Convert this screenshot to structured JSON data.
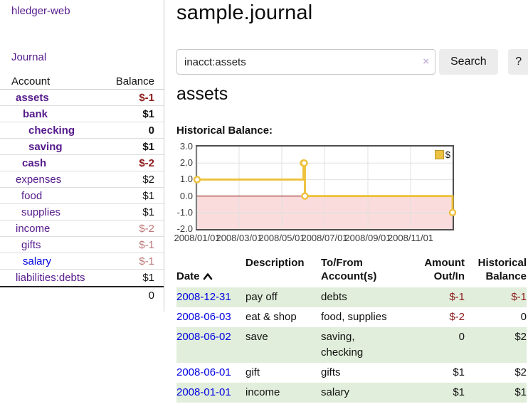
{
  "app": {
    "brand": "hledger-web",
    "nav_journal": "Journal"
  },
  "sidebar": {
    "header": {
      "account": "Account",
      "balance": "Balance"
    },
    "accounts": [
      {
        "name": "assets",
        "indent": 22,
        "bold": true,
        "link_color": "purple",
        "balance": "$-1",
        "balance_style": "negstrong"
      },
      {
        "name": "bank",
        "indent": 32,
        "bold": true,
        "link_color": "purple",
        "balance": "$1",
        "balance_style": "strong"
      },
      {
        "name": "checking",
        "indent": 40,
        "bold": true,
        "link_color": "purple",
        "balance": "0",
        "balance_style": "strong"
      },
      {
        "name": "saving",
        "indent": 40,
        "bold": true,
        "link_color": "purple",
        "balance": "$1",
        "balance_style": "strong"
      },
      {
        "name": "cash",
        "indent": 31,
        "bold": true,
        "link_color": "purple",
        "balance": "$-2",
        "balance_style": "negstrong"
      },
      {
        "name": "expenses",
        "indent": 22,
        "bold": false,
        "link_color": "purple",
        "balance": "$2",
        "balance_style": "plain"
      },
      {
        "name": "food",
        "indent": 30,
        "bold": false,
        "link_color": "purple",
        "balance": "$1",
        "balance_style": "plain"
      },
      {
        "name": "supplies",
        "indent": 30,
        "bold": false,
        "link_color": "purple",
        "balance": "$1",
        "balance_style": "plain"
      },
      {
        "name": "income",
        "indent": 22,
        "bold": false,
        "link_color": "purple",
        "balance": "$-2",
        "balance_style": "negsoft"
      },
      {
        "name": "gifts",
        "indent": 30,
        "bold": false,
        "link_color": "purple",
        "balance": "$-1",
        "balance_style": "negsoft"
      },
      {
        "name": "salary",
        "indent": 32,
        "bold": false,
        "link_color": "blue",
        "balance": "$-1",
        "balance_style": "negsoft"
      },
      {
        "name": "liabilities:debts",
        "indent": 22,
        "bold": false,
        "link_color": "purple",
        "balance": "$1",
        "balance_style": "plain"
      }
    ],
    "total": "0"
  },
  "header": {
    "title": "sample.journal"
  },
  "search": {
    "value": "inacct:assets",
    "clear_label": "×",
    "button": "Search",
    "help": "?"
  },
  "account_page": {
    "heading": "assets",
    "chart_label": "Historical Balance:"
  },
  "chart_data": {
    "type": "line",
    "step": true,
    "title": "Historical Balance:",
    "series": [
      {
        "name": "$",
        "color": "#edc240",
        "points": [
          [
            "2008-01-01",
            1
          ],
          [
            "2008-06-01",
            2
          ],
          [
            "2008-06-02",
            2
          ],
          [
            "2008-06-03",
            0
          ],
          [
            "2008-12-31",
            -1
          ]
        ]
      }
    ],
    "x_range": [
      "2008-01-01",
      "2008-12-31"
    ],
    "x_ticks": [
      "2008/01/01",
      "2008/03/01",
      "2008/05/01",
      "2008/07/01",
      "2008/09/01",
      "2008/11/01"
    ],
    "y_ticks": [
      "3.0",
      "2.0",
      "1.0",
      "0.0",
      "-1.0",
      "-2.0"
    ],
    "ylim": [
      -2,
      3
    ],
    "grid": true,
    "gridline_color": "#e0e0e0",
    "border_color": "#4f4f4f",
    "negative_region_color": "#fbdcdc",
    "zero_line_color": "#8b0000",
    "legend": {
      "position": "top-right",
      "label": "$",
      "swatch_color": "#edc240"
    }
  },
  "register": {
    "columns": [
      {
        "label": "Date",
        "sorted": "asc"
      },
      {
        "label": "Description"
      },
      {
        "label": "To/From\nAccount(s)"
      },
      {
        "label": "Amount\nOut/In"
      },
      {
        "label": "Historical\nBalance"
      }
    ],
    "rows": [
      {
        "date": "2008-12-31",
        "description": "pay off",
        "accounts": "debts",
        "amount": "$-1",
        "amount_neg": true,
        "balance": "$-1",
        "balance_neg": true,
        "shaded": true
      },
      {
        "date": "2008-06-03",
        "description": "eat & shop",
        "accounts": "food, supplies",
        "amount": "$-2",
        "amount_neg": true,
        "balance": "0",
        "balance_neg": false,
        "shaded": false
      },
      {
        "date": "2008-06-02",
        "description": "save",
        "accounts": "saving,\nchecking",
        "amount": "0",
        "amount_neg": false,
        "balance": "$2",
        "balance_neg": false,
        "shaded": true
      },
      {
        "date": "2008-06-01",
        "description": "gift",
        "accounts": "gifts",
        "amount": "$1",
        "amount_neg": false,
        "balance": "$2",
        "balance_neg": false,
        "shaded": false
      },
      {
        "date": "2008-01-01",
        "description": "income",
        "accounts": "salary",
        "amount": "$1",
        "amount_neg": false,
        "balance": "$1",
        "balance_neg": false,
        "shaded": true
      }
    ]
  }
}
